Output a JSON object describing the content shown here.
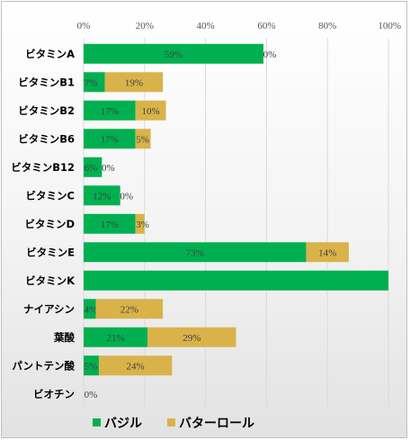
{
  "chart_data": {
    "type": "bar",
    "orientation": "horizontal",
    "stacked": true,
    "categories": [
      "ビタミンA",
      "ビタミンB1",
      "ビタミンB2",
      "ビタミンB6",
      "ビタミンB12",
      "ビタミンC",
      "ビタミンD",
      "ビタミンE",
      "ビタミンK",
      "ナイアシン",
      "葉酸",
      "パントテン酸",
      "ビオチン"
    ],
    "series": [
      {
        "name": "バジル",
        "color": "#00b050",
        "values": [
          59,
          7,
          17,
          17,
          6,
          12,
          17,
          73,
          100,
          4,
          21,
          5,
          0
        ],
        "labels": [
          "59%",
          "7%",
          "17%",
          "17%",
          "6%",
          "12%",
          "17%",
          "73%",
          "",
          "4%",
          "21%",
          "5%",
          "0%"
        ]
      },
      {
        "name": "バターロール",
        "color": "#d9b34a",
        "values": [
          0,
          19,
          10,
          5,
          0,
          0,
          3,
          14,
          0,
          22,
          29,
          24,
          0
        ],
        "labels": [
          "0%",
          "19%",
          "10%",
          "5%",
          "0%",
          "0%",
          "3%",
          "14%",
          "",
          "22%",
          "29%",
          "24%",
          ""
        ]
      }
    ],
    "xlim": [
      0,
      100
    ],
    "xticks": [
      "0%",
      "20%",
      "40%",
      "60%",
      "80%",
      "100%"
    ],
    "grid": true,
    "legend_position": "bottom"
  }
}
